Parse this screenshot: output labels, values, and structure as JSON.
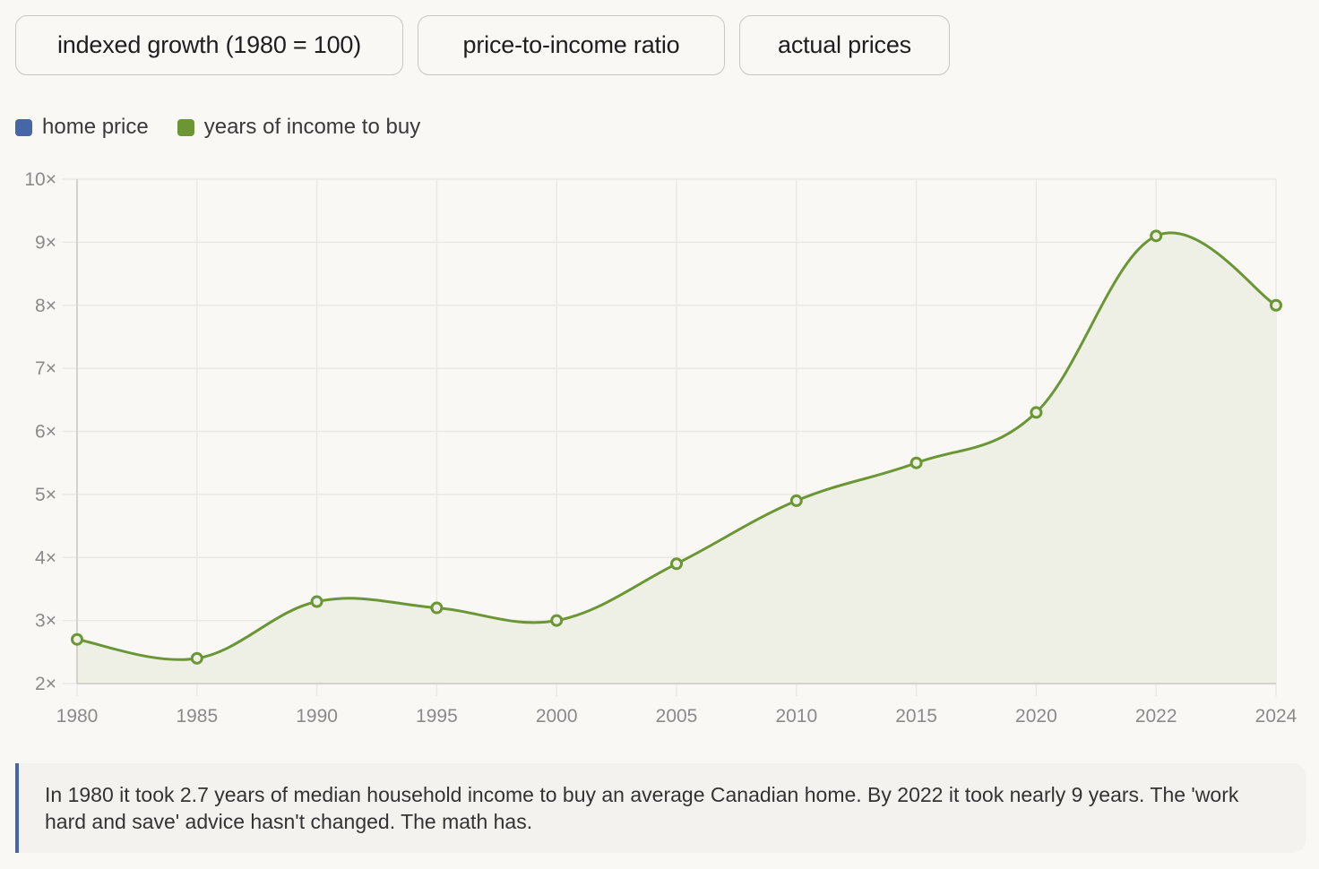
{
  "tabs": [
    {
      "label": "indexed growth (1980 = 100)"
    },
    {
      "label": "price-to-income ratio"
    },
    {
      "label": "actual prices"
    }
  ],
  "legend": [
    {
      "label": "home price",
      "color": "#4666a8"
    },
    {
      "label": "years of income to buy",
      "color": "#6b9635"
    }
  ],
  "chart_data": {
    "type": "area",
    "title": "",
    "xlabel": "",
    "ylabel": "",
    "x": [
      "1980",
      "1985",
      "1990",
      "1995",
      "2000",
      "2005",
      "2010",
      "2015",
      "2020",
      "2022",
      "2024"
    ],
    "series": [
      {
        "name": "years of income to buy",
        "color": "#6b9635",
        "values": [
          2.7,
          2.4,
          3.3,
          3.2,
          3.0,
          3.9,
          4.9,
          5.5,
          6.3,
          9.1,
          8.0
        ]
      }
    ],
    "ylim": [
      2,
      10
    ],
    "yticks": [
      2,
      3,
      4,
      5,
      6,
      7,
      8,
      9,
      10
    ],
    "ytick_suffix": "×",
    "grid": true,
    "legend_position": "top-left"
  },
  "caption": "In 1980 it took 2.7 years of median household income to buy an average Canadian home. By 2022 it took nearly 9 years. The 'work hard and save' advice hasn't changed. The math has."
}
